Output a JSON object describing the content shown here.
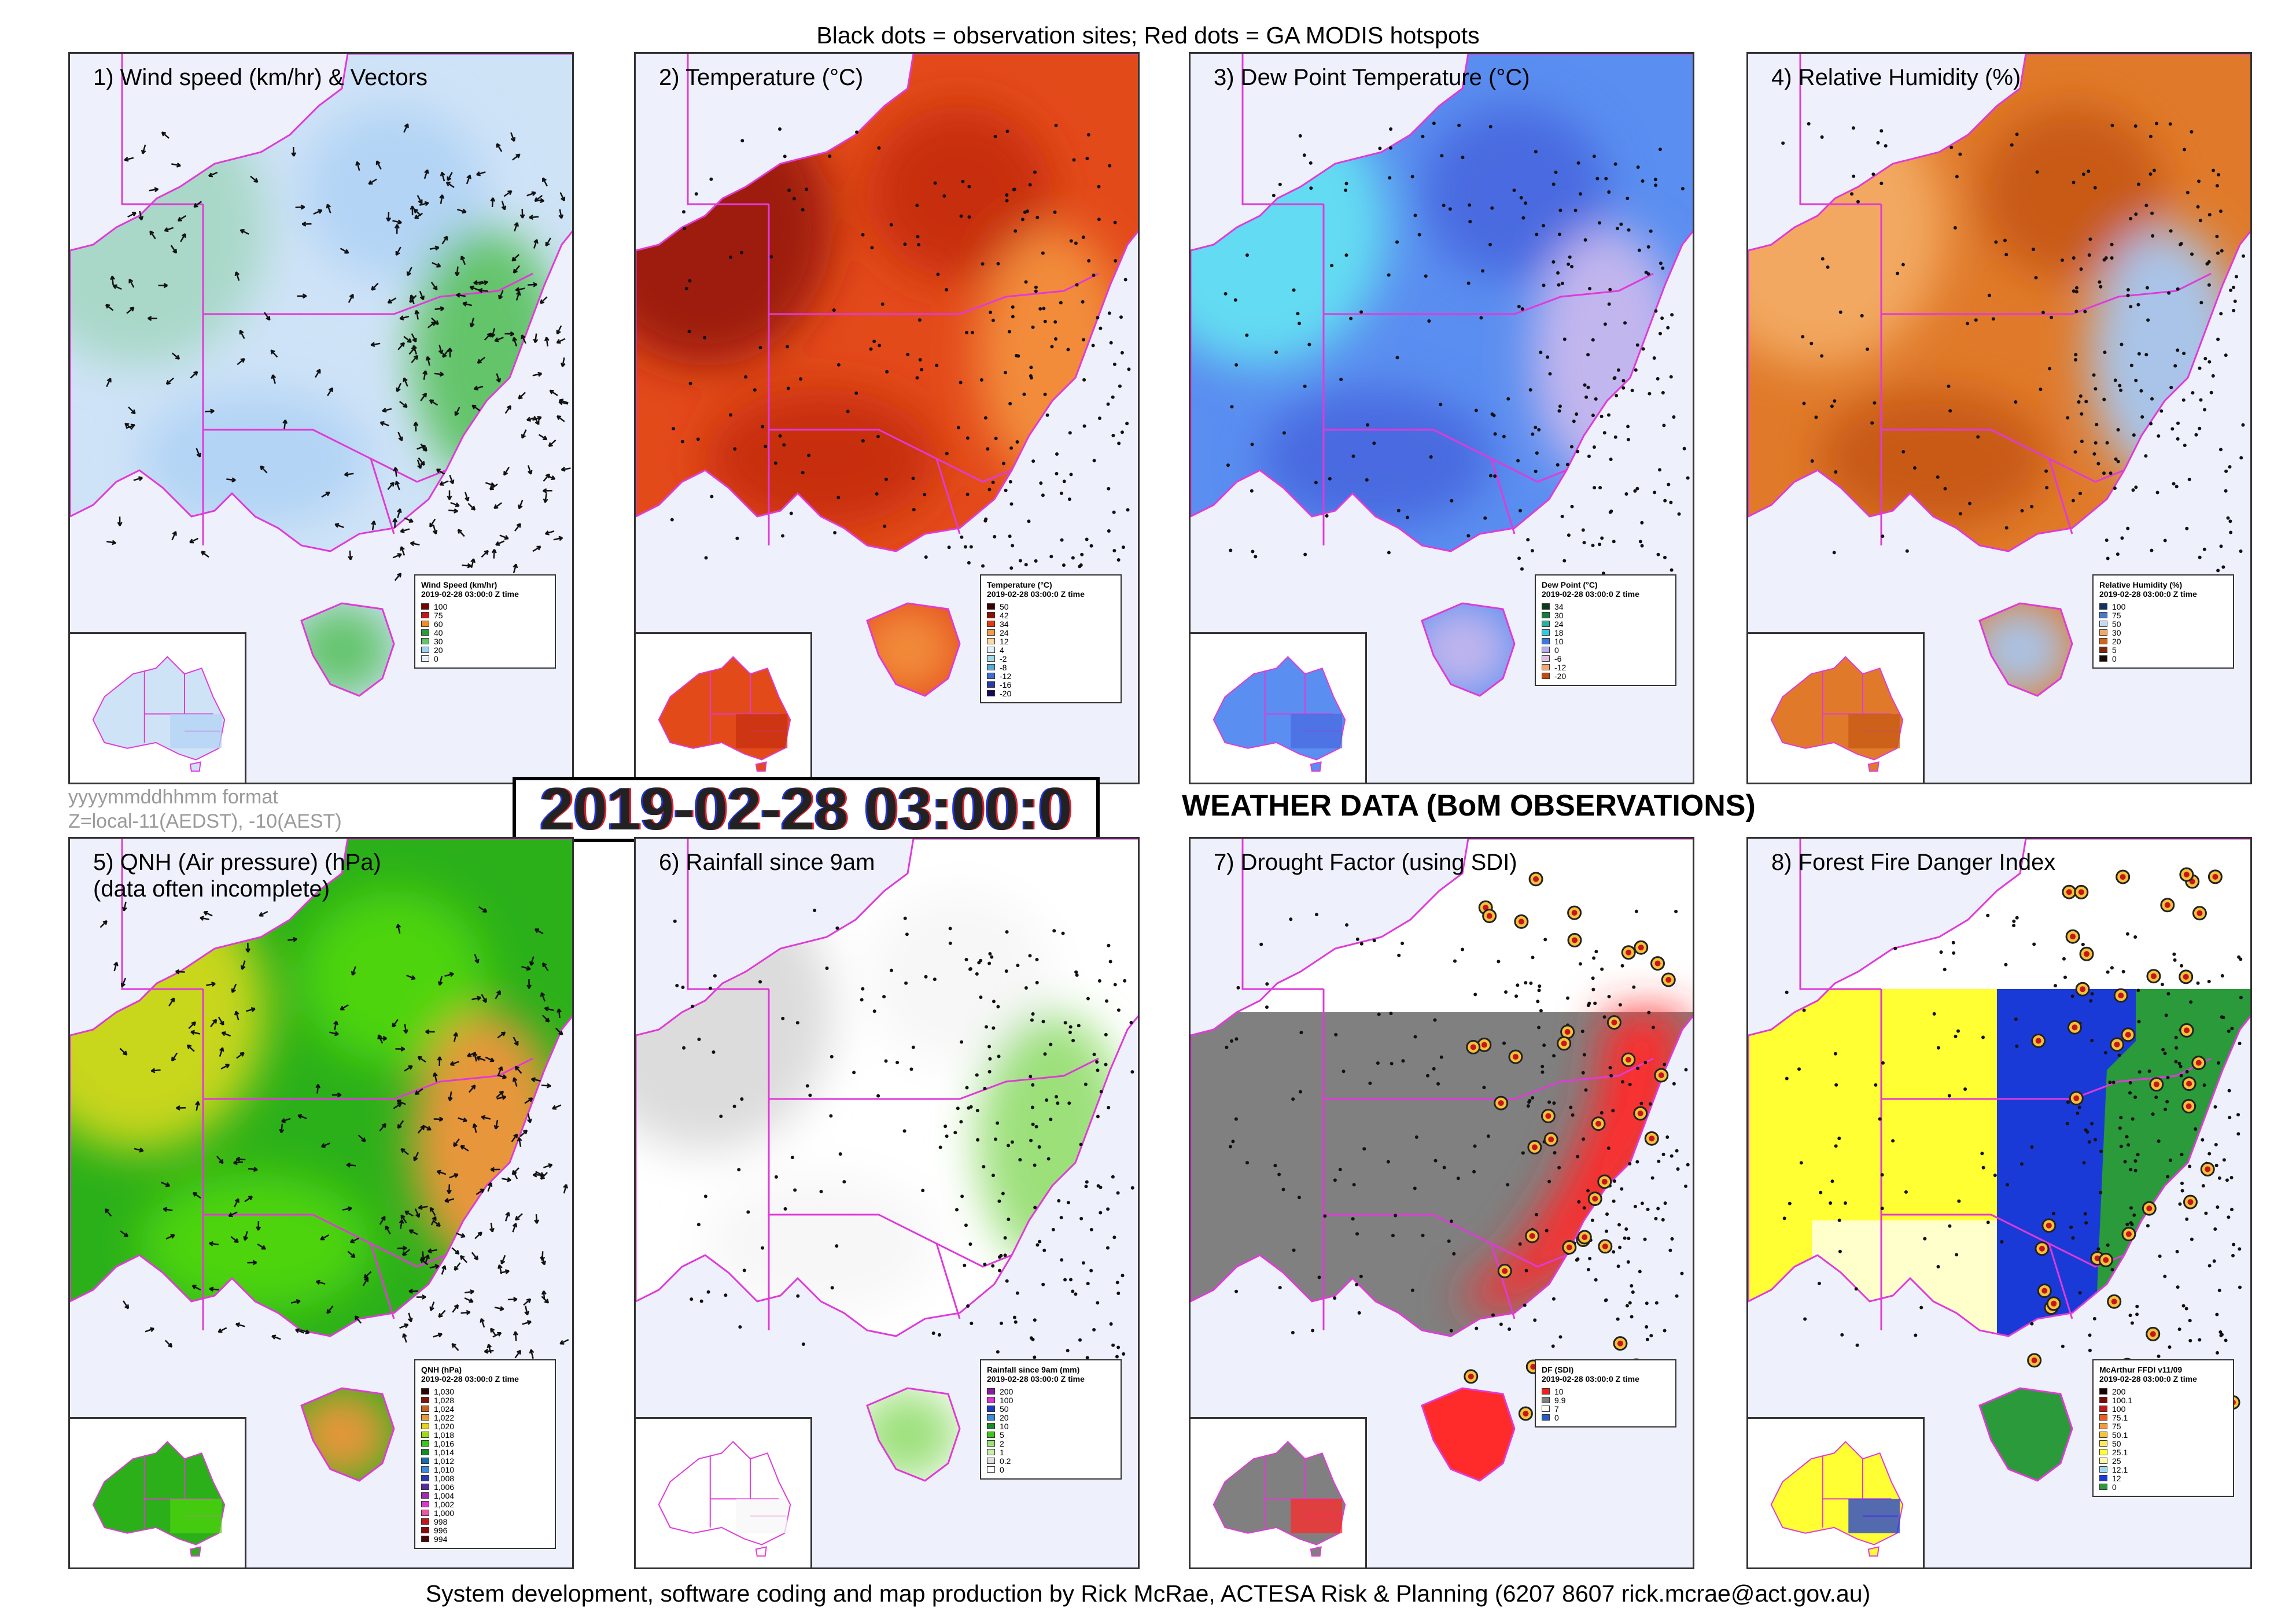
{
  "header": {
    "caption": "Black dots = observation sites; Red dots = GA MODIS hotspots",
    "format_note_1": "yyyymmddhhmm format",
    "format_note_2": "Z=local-11(AEDST), -10(AEST)",
    "timestamp": "2019-02-28 03:00:0",
    "section_title": "WEATHER DATA (BoM OBSERVATIONS)"
  },
  "footer": "System development, software coding and map production by Rick McRae, ACTESA Risk & Planning (6207 8607 rick.mcrae@act.gov.au)",
  "panels": [
    {
      "title": "1) Wind speed (km/hr) & Vectors",
      "colors": [
        "#cfe3f7",
        "#b3d4f5",
        "#a9d8c8",
        "#63c46b"
      ],
      "vectors": true,
      "legend": {
        "title": "Wind Speed (km/hr)",
        "subtitle": "2019-02-28 03:00:0 Z time",
        "items": [
          {
            "label": "100",
            "color": "#7a0000"
          },
          {
            "label": "75",
            "color": "#c4161c"
          },
          {
            "label": "60",
            "color": "#f28c28"
          },
          {
            "label": "40",
            "color": "#2e9b3a"
          },
          {
            "label": "30",
            "color": "#63c46b"
          },
          {
            "label": "20",
            "color": "#9fd3f2"
          },
          {
            "label": "0",
            "color": "#e8f1fb"
          }
        ]
      }
    },
    {
      "title": "2) Temperature (°C)",
      "colors": [
        "#e34a1a",
        "#c72f10",
        "#9e1a08",
        "#f28c3a"
      ],
      "vectors": false,
      "legend": {
        "title": "Temperature (°C)",
        "subtitle": "2019-02-28 03:00:0 Z time",
        "items": [
          {
            "label": "50",
            "color": "#3b0000"
          },
          {
            "label": "42",
            "color": "#8a1200"
          },
          {
            "label": "34",
            "color": "#e03a10"
          },
          {
            "label": "24",
            "color": "#f59a4a"
          },
          {
            "label": "12",
            "color": "#fbd9a8"
          },
          {
            "label": "4",
            "color": "#dff2f5"
          },
          {
            "label": "-2",
            "color": "#9fd9e8"
          },
          {
            "label": "-8",
            "color": "#5aa8d8"
          },
          {
            "label": "-12",
            "color": "#3a6fd0"
          },
          {
            "label": "-16",
            "color": "#2a3aa8"
          },
          {
            "label": "-20",
            "color": "#140a5a"
          }
        ]
      }
    },
    {
      "title": "3) Dew Point Temperature (°C)",
      "colors": [
        "#5a8ef0",
        "#4a6ae0",
        "#63dbf2",
        "#c2b6ee"
      ],
      "vectors": false,
      "legend": {
        "title": "Dew Point (°C)",
        "subtitle": "2019-02-28 03:00:0 Z time",
        "items": [
          {
            "label": "34",
            "color": "#0a3a1a"
          },
          {
            "label": "30",
            "color": "#1a7a3a"
          },
          {
            "label": "24",
            "color": "#2bb0a0"
          },
          {
            "label": "18",
            "color": "#34c8e0"
          },
          {
            "label": "10",
            "color": "#3a78e8"
          },
          {
            "label": "0",
            "color": "#b8b0ee"
          },
          {
            "label": "-6",
            "color": "#e0c0e8"
          },
          {
            "label": "-12",
            "color": "#f2a870"
          },
          {
            "label": "-20",
            "color": "#c04a10"
          }
        ]
      }
    },
    {
      "title": "4) Relative Humidity (%)",
      "colors": [
        "#e07a2a",
        "#c85a14",
        "#f2a860",
        "#a9c4e8"
      ],
      "vectors": false,
      "legend": {
        "title": "Relative Humidity (%)",
        "subtitle": "2019-02-28 03:00:0 Z time",
        "items": [
          {
            "label": "100",
            "color": "#14306a"
          },
          {
            "label": "75",
            "color": "#4a78c8"
          },
          {
            "label": "50",
            "color": "#c8d8ee"
          },
          {
            "label": "30",
            "color": "#f2a860"
          },
          {
            "label": "20",
            "color": "#d0641a"
          },
          {
            "label": "5",
            "color": "#7a2a08"
          },
          {
            "label": "0",
            "color": "#1a0a04"
          }
        ]
      }
    },
    {
      "title": "5) QNH (Air pressure) (hPa)\n(data often incomplete)",
      "colors": [
        "#2bb01a",
        "#4ed40e",
        "#c8d61a",
        "#e8963a"
      ],
      "vectors": true,
      "legend": {
        "title": "QNH (hPa)",
        "subtitle": "2019-02-28 03:00:0 Z time",
        "items": [
          {
            "label": "1,030",
            "color": "#2a0a00"
          },
          {
            "label": "1,028",
            "color": "#7a1a0a"
          },
          {
            "label": "1,024",
            "color": "#c8641a"
          },
          {
            "label": "1,022",
            "color": "#e89a3a"
          },
          {
            "label": "1,020",
            "color": "#e8d21a"
          },
          {
            "label": "1,018",
            "color": "#a0d81a"
          },
          {
            "label": "1,016",
            "color": "#3ac81a"
          },
          {
            "label": "1,014",
            "color": "#1a8a2a"
          },
          {
            "label": "1,012",
            "color": "#1a6ab0"
          },
          {
            "label": "1,010",
            "color": "#3a8ae0"
          },
          {
            "label": "1,008",
            "color": "#2a3ab0"
          },
          {
            "label": "1,006",
            "color": "#5a2aa0"
          },
          {
            "label": "1,004",
            "color": "#a02ab0"
          },
          {
            "label": "1,002",
            "color": "#d83ad0"
          },
          {
            "label": "1,000",
            "color": "#e85aa0"
          },
          {
            "label": "998",
            "color": "#c8141a"
          },
          {
            "label": "996",
            "color": "#8a0a0a"
          },
          {
            "label": "994",
            "color": "#4a0404"
          }
        ]
      }
    },
    {
      "title": "6) Rainfall since 9am",
      "colors": [
        "#ffffff",
        "#f7f7f7",
        "#dcdcdc",
        "#9ce07a"
      ],
      "vectors": false,
      "legend": {
        "title": "Rainfall since 9am (mm)",
        "subtitle": "2019-02-28 03:00:0 Z time",
        "items": [
          {
            "label": "200",
            "color": "#8a1aa0"
          },
          {
            "label": "100",
            "color": "#d83ad0"
          },
          {
            "label": "50",
            "color": "#1a3ac8"
          },
          {
            "label": "20",
            "color": "#3a8ae0"
          },
          {
            "label": "10",
            "color": "#1a8a2a"
          },
          {
            "label": "5",
            "color": "#3ac81a"
          },
          {
            "label": "2",
            "color": "#9ce07a"
          },
          {
            "label": "1",
            "color": "#c8eeb0"
          },
          {
            "label": "0.2",
            "color": "#e0e0e0"
          },
          {
            "label": "0",
            "color": "#ffffff"
          }
        ]
      }
    },
    {
      "title": "7) Drought Factor (using SDI)",
      "colors": [
        "#808080",
        "#ff2a2a",
        "#ffffff",
        "#ff9a9a"
      ],
      "vectors": false,
      "hotspots": true,
      "legend": {
        "title": "DF (SDI)",
        "subtitle": "2019-02-28 03:00:0 Z time",
        "items": [
          {
            "label": "10",
            "color": "#ff1a1a"
          },
          {
            "label": "9.9",
            "color": "#808080"
          },
          {
            "label": "7",
            "color": "#ffffff"
          },
          {
            "label": "0",
            "color": "#2a5ac8"
          }
        ]
      }
    },
    {
      "title": "8) Forest Fire Danger Index",
      "colors": [
        "#ffff33",
        "#1a3ad8",
        "#2a9a3a",
        "#fffbd0"
      ],
      "vectors": false,
      "hotspots": true,
      "legend": {
        "title": "McArthur FFDI v11/09",
        "subtitle": "2019-02-28 03:00:0 Z time",
        "items": [
          {
            "label": "200",
            "color": "#1a0000"
          },
          {
            "label": "100.1",
            "color": "#7a0a0a"
          },
          {
            "label": "100",
            "color": "#c8141a"
          },
          {
            "label": "75.1",
            "color": "#f25a1a"
          },
          {
            "label": "75",
            "color": "#f59a3a"
          },
          {
            "label": "50.1",
            "color": "#f5c23a"
          },
          {
            "label": "50",
            "color": "#ffe85a"
          },
          {
            "label": "25.1",
            "color": "#ffff33"
          },
          {
            "label": "25",
            "color": "#fff7b0"
          },
          {
            "label": "12.1",
            "color": "#9ad8f2"
          },
          {
            "label": "12",
            "color": "#1a3ad8"
          },
          {
            "label": "0",
            "color": "#2a9a3a"
          }
        ]
      }
    }
  ]
}
